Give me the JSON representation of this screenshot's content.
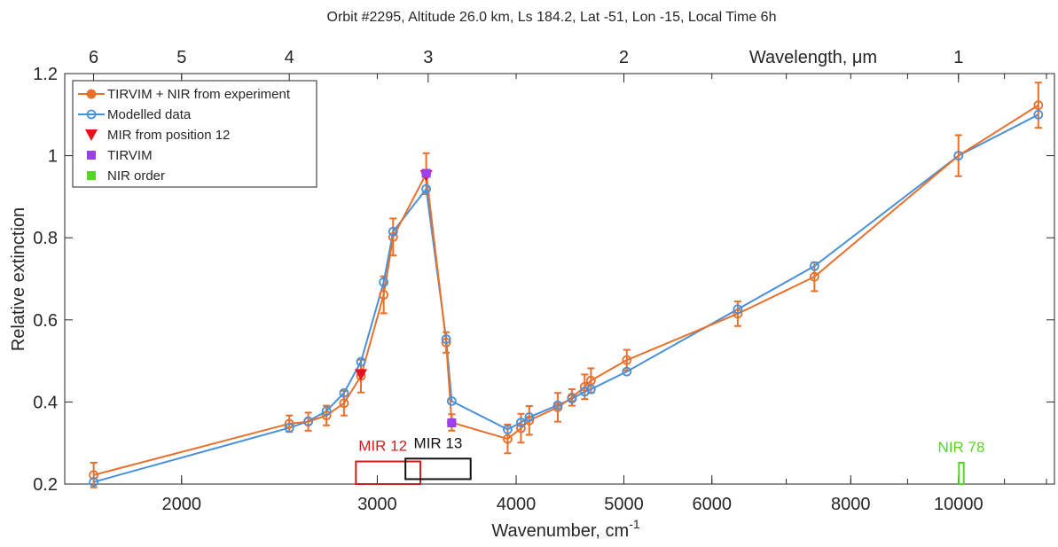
{
  "chart_data": {
    "type": "line",
    "title": "Orbit #2295, Altitude 26.0 km, Ls 184.2, Lat -51, Lon -15, Local Time 6h",
    "xlabel": "Wavenumber, cm",
    "xlabel_superscript": "-1",
    "ylabel": "Relative extinction",
    "x_scale": "log",
    "xlim": [
      1570,
      12200
    ],
    "ylim": [
      0.2,
      1.2
    ],
    "x_ticks": [
      2000,
      3000,
      4000,
      5000,
      6000,
      8000,
      10000
    ],
    "x_tick_labels": [
      "2000",
      "3000",
      "4000",
      "5000",
      "6000",
      "8000",
      "10000"
    ],
    "y_ticks": [
      0.2,
      0.4,
      0.6,
      0.8,
      1.0,
      1.2
    ],
    "y_tick_labels": [
      "0.2",
      "0.4",
      "0.6",
      "0.8",
      "1",
      "1.2"
    ],
    "top_axis": {
      "label": "Wavelength, μm",
      "ticks_um": [
        6,
        5,
        4,
        3,
        2,
        1
      ],
      "tick_labels": [
        "6",
        "5",
        "4",
        "3",
        "2",
        "1"
      ]
    },
    "grid": false,
    "legend_position": "top-left",
    "series": [
      {
        "name": "TIRVIM + NIR from experiment",
        "color": "#e8702a",
        "marker": "circle",
        "x": [
          1667,
          2500,
          2600,
          2700,
          2800,
          2900,
          3040,
          3100,
          3320,
          3460,
          3500,
          3930,
          4040,
          4110,
          4360,
          4490,
          4610,
          4670,
          5030,
          6330,
          7420,
          10000,
          11800
        ],
        "y": [
          0.222,
          0.347,
          0.352,
          0.367,
          0.397,
          0.463,
          0.661,
          0.802,
          0.956,
          0.545,
          0.35,
          0.31,
          0.336,
          0.355,
          0.387,
          0.411,
          0.437,
          0.452,
          0.502,
          0.615,
          0.705,
          1.0,
          1.123
        ],
        "error": [
          0.03,
          0.02,
          0.022,
          0.024,
          0.03,
          0.04,
          0.045,
          0.045,
          0.05,
          0.025,
          0.02,
          0.035,
          0.035,
          0.035,
          0.035,
          0.02,
          0.03,
          0.03,
          0.025,
          0.03,
          0.035,
          0.05,
          0.055
        ]
      },
      {
        "name": "Modelled data",
        "color": "#4a90d9",
        "marker": "open-circle",
        "x": [
          1667,
          2500,
          2600,
          2700,
          2800,
          2900,
          3040,
          3100,
          3320,
          3460,
          3500,
          3930,
          4040,
          4110,
          4360,
          4490,
          4610,
          4670,
          5030,
          6330,
          7420,
          10000,
          11800
        ],
        "y": [
          0.205,
          0.337,
          0.353,
          0.378,
          0.422,
          0.498,
          0.692,
          0.815,
          0.919,
          0.553,
          0.402,
          0.333,
          0.35,
          0.363,
          0.392,
          0.408,
          0.425,
          0.431,
          0.474,
          0.626,
          0.731,
          1.0,
          1.1
        ]
      },
      {
        "name": "MIR from position 12",
        "color": "#e8101a",
        "marker": "triangle-down",
        "x": [
          2900,
          3320
        ],
        "y": [
          0.467,
          0.952
        ]
      },
      {
        "name": "TIRVIM",
        "color": "#9b3ff0",
        "marker": "square",
        "x": [
          3320,
          3500
        ],
        "y": [
          0.957,
          0.349
        ]
      },
      {
        "name": "NIR order",
        "color": "#55d620",
        "marker": "square",
        "x": [],
        "y": []
      }
    ],
    "annotations": [
      {
        "label": "MIR 12",
        "color": "#cc1f1f",
        "x_range": [
          2870,
          3280
        ],
        "y_range": [
          0.2,
          0.255
        ]
      },
      {
        "label": "MIR 13",
        "color": "#111111",
        "x_range": [
          3180,
          3640
        ],
        "y_range": [
          0.212,
          0.262
        ]
      },
      {
        "label": "NIR 78",
        "color": "#55d620",
        "x_range": [
          10010,
          10110
        ],
        "y_range": [
          0.2,
          0.252
        ]
      }
    ]
  }
}
